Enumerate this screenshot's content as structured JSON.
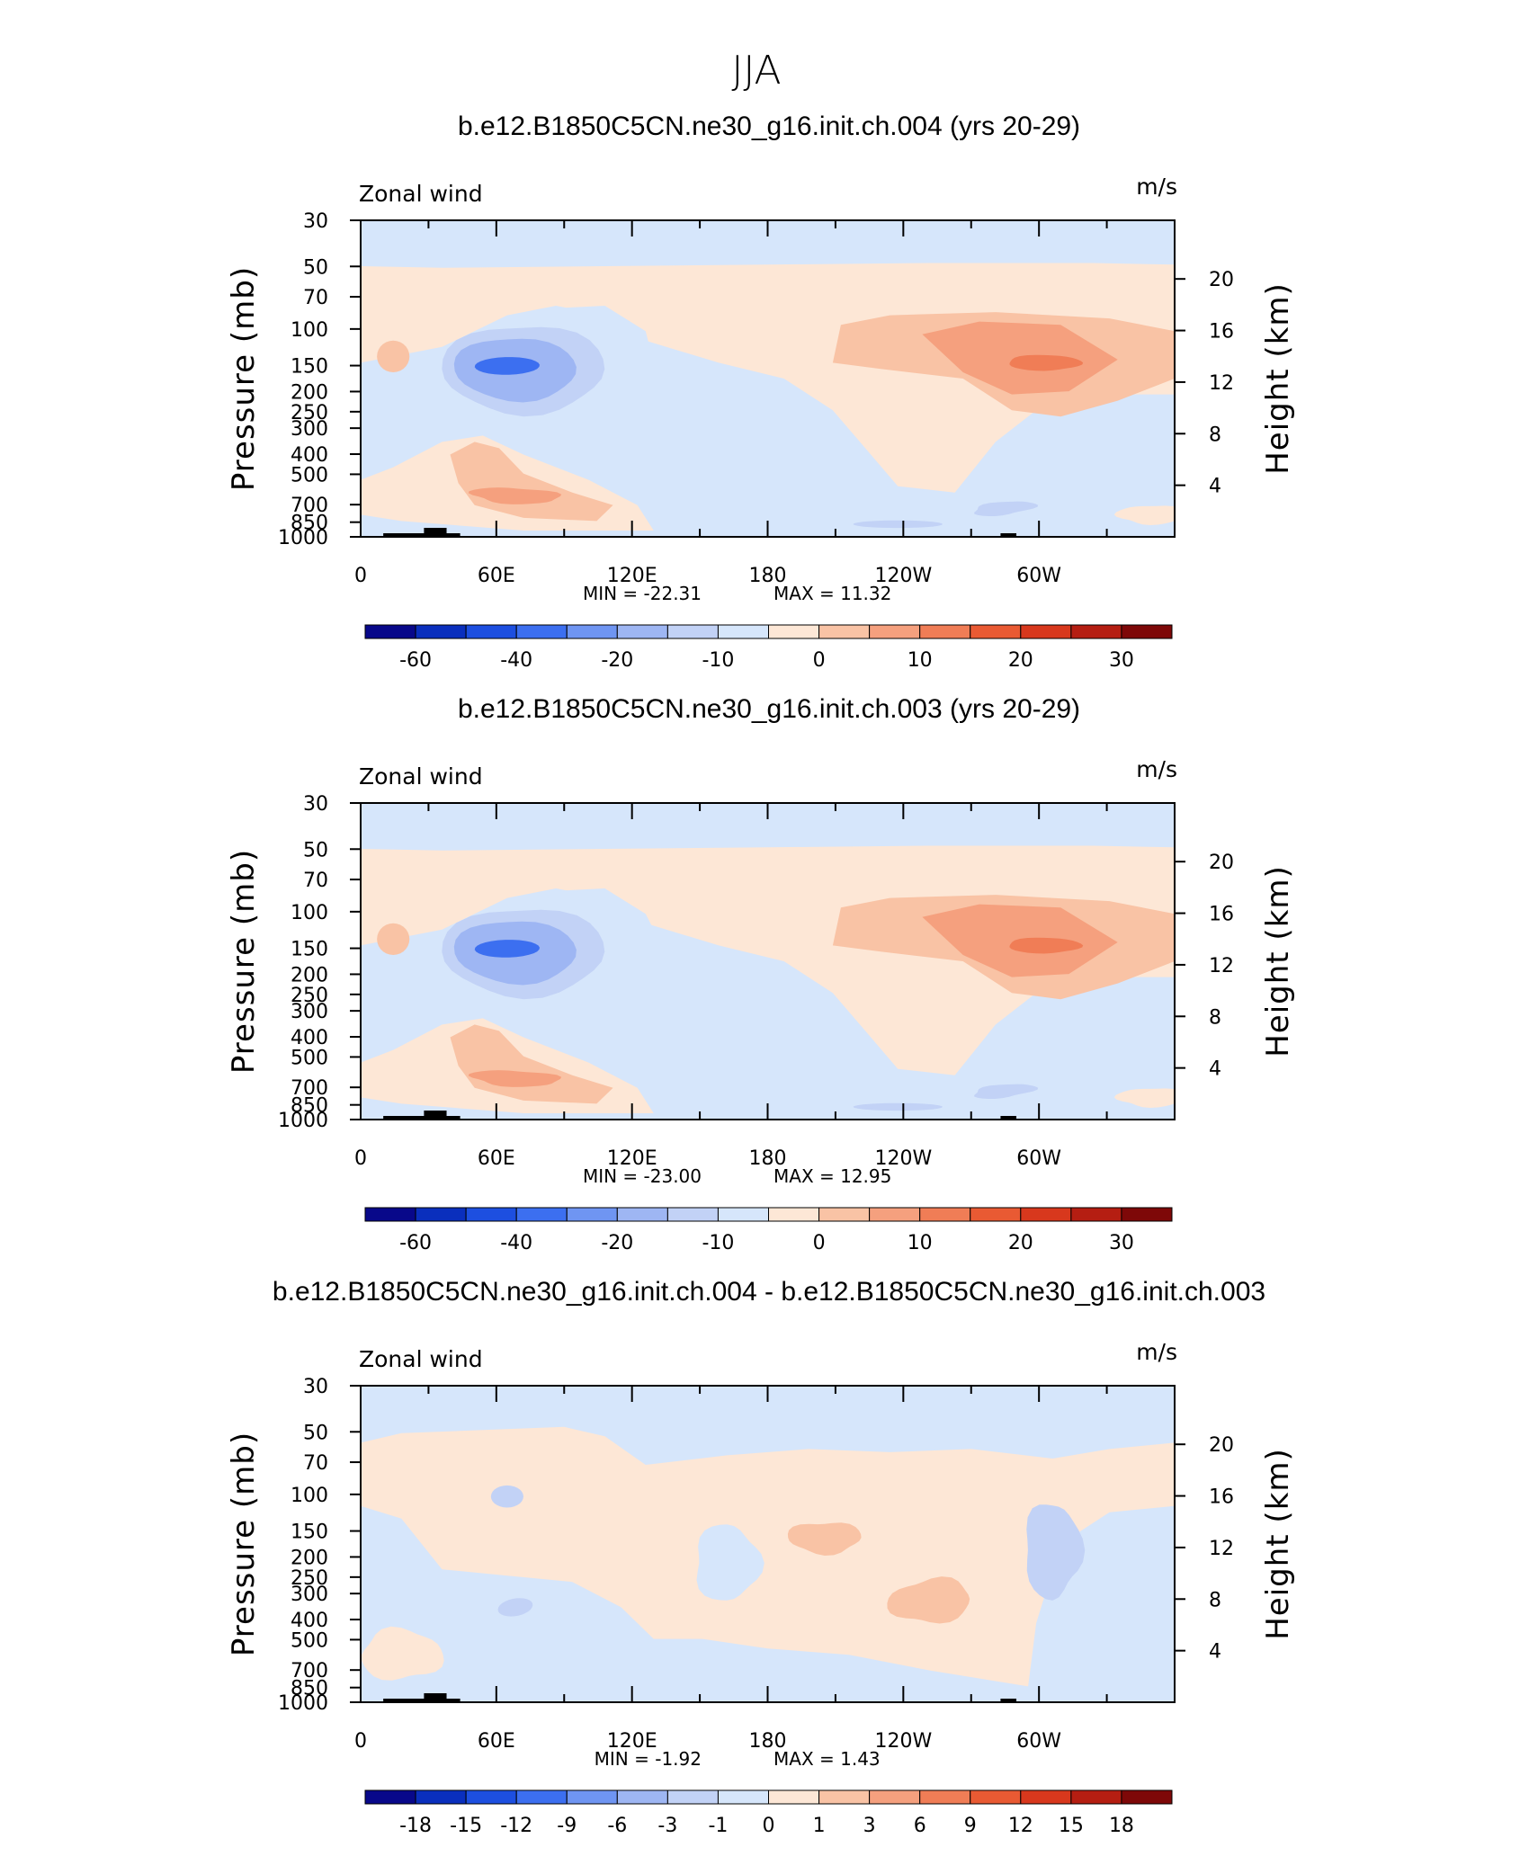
{
  "title": "JJA",
  "colors": {
    "scale": [
      "#08088a",
      "#0a2fbd",
      "#1d4fe0",
      "#3c6ff0",
      "#6f95f2",
      "#9eb6f3",
      "#c2d2f6",
      "#d6e6fb",
      "#fde7d6",
      "#f9c3a5",
      "#f5a07e",
      "#f07d56",
      "#e95a33",
      "#d8381d",
      "#b51e12",
      "#7e0808"
    ],
    "land": "#000000"
  },
  "chart_data": [
    {
      "type": "heatmap",
      "panel": "top",
      "title": "b.e12.B1850C5CN.ne30_g16.init.ch.004 (yrs 20-29)",
      "left_label": "Zonal wind",
      "right_label": "m/s",
      "xlabel": "",
      "ylabel": "Pressure (mb)",
      "ylabel_right": "Height (km)",
      "x_range": [
        0,
        360
      ],
      "x_ticks": [
        "0",
        "60E",
        "120E",
        "180",
        "120W",
        "60W"
      ],
      "y_ticks": [
        "30",
        "50",
        "70",
        "100",
        "150",
        "200",
        "250",
        "300",
        "400",
        "500",
        "700",
        "850",
        "1000"
      ],
      "y_right_ticks": [
        "20",
        "16",
        "12",
        "8",
        "4"
      ],
      "min_label": "MIN = -22.31",
      "max_label": "MAX = 11.32",
      "min": -22.31,
      "max": 11.32,
      "colorbar_labels": [
        "-60",
        "-40",
        "-20",
        "-10",
        "0",
        "10",
        "20",
        "30"
      ],
      "contour_levels": [
        -70,
        -60,
        -50,
        -40,
        -30,
        -20,
        -15,
        -10,
        -5,
        0,
        5,
        10,
        15,
        20,
        25,
        30,
        35
      ]
    },
    {
      "type": "heatmap",
      "panel": "middle",
      "title": "b.e12.B1850C5CN.ne30_g16.init.ch.003 (yrs 20-29)",
      "left_label": "Zonal wind",
      "right_label": "m/s",
      "xlabel": "",
      "ylabel": "Pressure (mb)",
      "ylabel_right": "Height (km)",
      "x_range": [
        0,
        360
      ],
      "x_ticks": [
        "0",
        "60E",
        "120E",
        "180",
        "120W",
        "60W"
      ],
      "y_ticks": [
        "30",
        "50",
        "70",
        "100",
        "150",
        "200",
        "250",
        "300",
        "400",
        "500",
        "700",
        "850",
        "1000"
      ],
      "y_right_ticks": [
        "20",
        "16",
        "12",
        "8",
        "4"
      ],
      "min_label": "MIN = -23.00",
      "max_label": "MAX = 12.95",
      "min": -23.0,
      "max": 12.95,
      "colorbar_labels": [
        "-60",
        "-40",
        "-20",
        "-10",
        "0",
        "10",
        "20",
        "30"
      ],
      "contour_levels": [
        -70,
        -60,
        -50,
        -40,
        -30,
        -20,
        -15,
        -10,
        -5,
        0,
        5,
        10,
        15,
        20,
        25,
        30,
        35
      ]
    },
    {
      "type": "heatmap",
      "panel": "bottom",
      "title": "b.e12.B1850C5CN.ne30_g16.init.ch.004 - b.e12.B1850C5CN.ne30_g16.init.ch.003",
      "left_label": "Zonal wind",
      "right_label": "m/s",
      "xlabel": "",
      "ylabel": "Pressure (mb)",
      "ylabel_right": "Height (km)",
      "x_range": [
        0,
        360
      ],
      "x_ticks": [
        "0",
        "60E",
        "120E",
        "180",
        "120W",
        "60W"
      ],
      "y_ticks": [
        "30",
        "50",
        "70",
        "100",
        "150",
        "200",
        "250",
        "300",
        "400",
        "500",
        "700",
        "850",
        "1000"
      ],
      "y_right_ticks": [
        "20",
        "16",
        "12",
        "8",
        "4"
      ],
      "min_label": "MIN = -1.92",
      "max_label": "MAX = 1.43",
      "min": -1.92,
      "max": 1.43,
      "colorbar_labels": [
        "-18",
        "-15",
        "-12",
        "-9",
        "-6",
        "-3",
        "-1",
        "0",
        "1",
        "3",
        "6",
        "9",
        "12",
        "15",
        "18"
      ],
      "contour_levels": [
        -18,
        -15,
        -12,
        -9,
        -6,
        -3,
        -1,
        0,
        1,
        3,
        6,
        9,
        12,
        15,
        18
      ]
    }
  ]
}
